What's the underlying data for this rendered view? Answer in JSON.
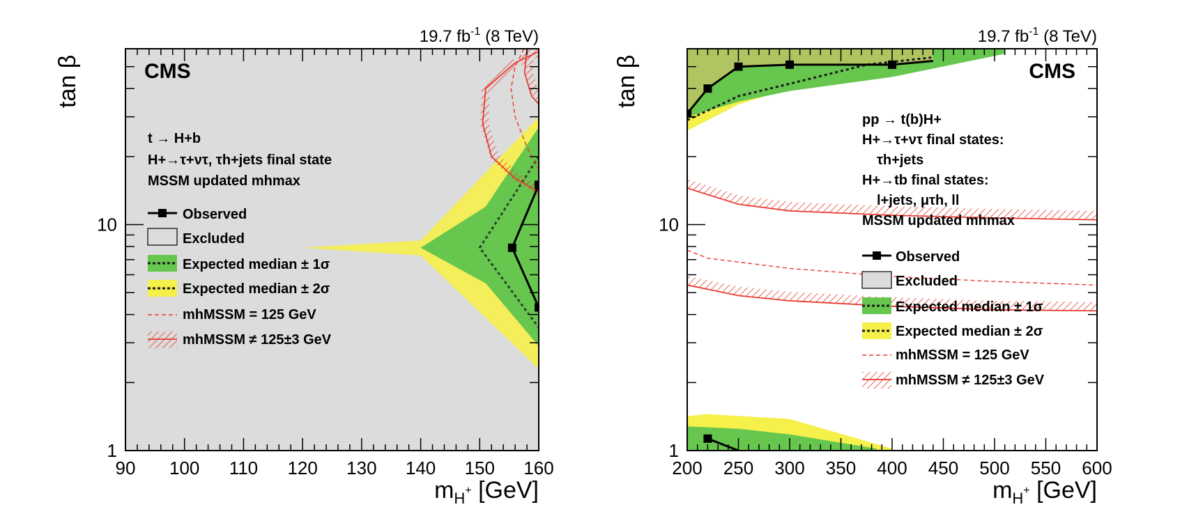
{
  "colors": {
    "excluded": "#dcdcdc",
    "green": "#66c64e",
    "yellow": "#f5f04a",
    "red": "#e8392f"
  },
  "chart_data": [
    {
      "type": "area",
      "panel": "left",
      "lumi_label": "19.7 fb-1 (8 TeV)",
      "lumi_main": "19.7 fb",
      "lumi_exp": "-1",
      "lumi_rest": " (8 TeV)",
      "cms_label": "CMS",
      "xlabel_main": "m",
      "xlabel_sub": "H",
      "xlabel_sup": "+",
      "xlabel_unit": " [GeV]",
      "ylabel": "tan β",
      "xlim": [
        90,
        160
      ],
      "ylim": [
        1,
        60
      ],
      "yscale": "log",
      "x_ticks": [
        90,
        100,
        110,
        120,
        130,
        140,
        150,
        160
      ],
      "y_ticks": [
        1,
        10
      ],
      "annotation_lines": [
        "t → H+b",
        "H+→τ+ντ, τh+jets final state",
        "MSSM updated mhmax"
      ],
      "legend": [
        "Observed",
        "Excluded",
        "Expected median ± 1σ",
        "Expected median ± 2σ",
        "mhMSSM = 125 GeV",
        "mhMSSM ≠ 125±3 GeV"
      ],
      "excluded_region": "full plane except right-hand wedge above observed line",
      "observed": {
        "x": [
          155.5,
          160,
          160
        ],
        "y": [
          7.9,
          15,
          4.3
        ]
      },
      "expected_median": {
        "x": [
          150,
          160,
          150,
          160
        ],
        "y": [
          7.9,
          20,
          7.9,
          3.5
        ]
      },
      "band_1sigma": {
        "x": [
          140,
          151,
          160,
          160,
          151,
          140
        ],
        "y": [
          7.9,
          12,
          27,
          2.9,
          5.5,
          7.9
        ]
      },
      "band_2sigma": {
        "x": [
          120,
          140,
          160,
          160,
          140,
          120
        ],
        "y": [
          7.9,
          8.5,
          30,
          2.3,
          7.3,
          7.9
        ]
      }
    },
    {
      "type": "area",
      "panel": "right",
      "lumi_label": "19.7 fb-1 (8 TeV)",
      "lumi_main": "19.7 fb",
      "lumi_exp": "-1",
      "lumi_rest": " (8 TeV)",
      "cms_label": "CMS",
      "xlabel_main": "m",
      "xlabel_sub": "H",
      "xlabel_sup": "+",
      "xlabel_unit": " [GeV]",
      "ylabel": "tan β",
      "xlim": [
        200,
        600
      ],
      "ylim": [
        1,
        60
      ],
      "yscale": "log",
      "x_ticks": [
        200,
        250,
        300,
        350,
        400,
        450,
        500,
        550,
        600
      ],
      "y_ticks": [
        1,
        10
      ],
      "annotation_lines": [
        "pp → t(b)H+",
        "H+→τ+ντ final states:",
        "τh+jets",
        "H+→tb final states:",
        "l+jets, μτh, ll",
        "MSSM updated mhmax"
      ],
      "legend": [
        "Observed",
        "Excluded",
        "Expected median ± 1σ",
        "Expected median ± 2σ",
        "mhMSSM = 125 GeV",
        "mhMSSM ≠ 125±3 GeV"
      ],
      "observed_top": {
        "x": [
          200,
          220,
          250,
          300,
          400,
          440
        ],
        "y": [
          31,
          40,
          50,
          51,
          51,
          53
        ]
      },
      "expected_top": {
        "x": [
          200,
          250,
          300,
          375,
          440
        ],
        "y": [
          29,
          37,
          42,
          51,
          55
        ]
      },
      "observed_bottom": {
        "x": [
          220,
          250
        ],
        "y": [
          1.13,
          1.0
        ]
      },
      "red_solid_upper": {
        "x": [
          200,
          250,
          300,
          400,
          500,
          600
        ],
        "y": [
          14.5,
          12.3,
          11.5,
          11.0,
          10.7,
          10.5
        ]
      },
      "red_solid_lower": {
        "x": [
          200,
          250,
          300,
          400,
          500,
          600
        ],
        "y": [
          5.4,
          4.85,
          4.6,
          4.35,
          4.2,
          4.15
        ]
      },
      "red_dashed": {
        "x": [
          200,
          220,
          300,
          400,
          500,
          600
        ],
        "y": [
          7.7,
          7.1,
          6.4,
          5.9,
          5.6,
          5.4
        ]
      }
    }
  ]
}
